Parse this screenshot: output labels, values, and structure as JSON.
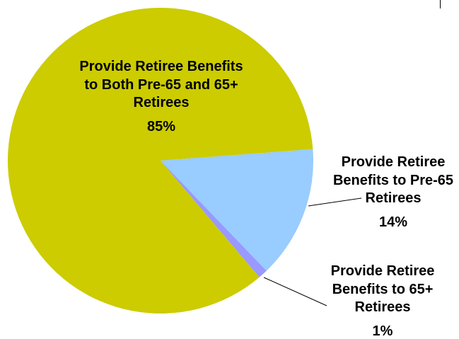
{
  "chart_data": {
    "type": "pie",
    "show_legend": false,
    "slices": [
      {
        "label_lines": [
          "Provide Retiree Benefits",
          "to Both Pre-65 and 65+",
          "Retirees"
        ],
        "value": 85,
        "value_label": "85%",
        "color": "#CCCC00"
      },
      {
        "label_lines": [
          "Provide Retiree",
          "Benefits to Pre-65",
          "Retirees"
        ],
        "value": 14,
        "value_label": "14%",
        "color": "#99CCFF"
      },
      {
        "label_lines": [
          "Provide Retiree",
          "Benefits to 65+",
          "Retirees"
        ],
        "value": 1,
        "value_label": "1%",
        "color": "#9999FF"
      }
    ]
  }
}
